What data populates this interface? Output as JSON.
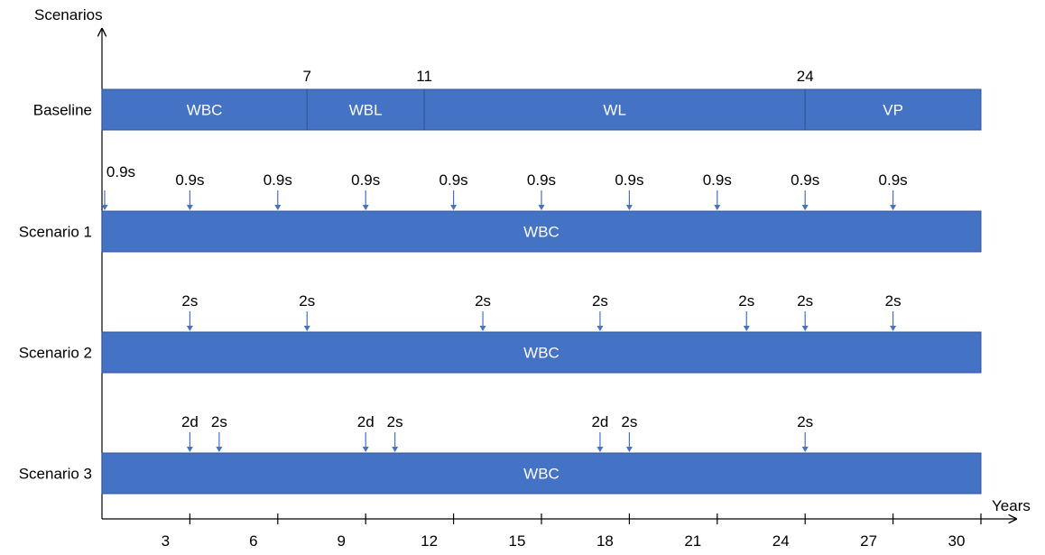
{
  "axes": {
    "y_title": "Scenarios",
    "x_title": "Years",
    "x_ticks": [
      3,
      6,
      9,
      12,
      15,
      18,
      21,
      24,
      27,
      30
    ],
    "x_range": [
      0,
      30
    ]
  },
  "colors": {
    "bar": "#4472C4",
    "bar_border": "#2F5597",
    "arrow": "#4472C4",
    "divider": "#2F5597"
  },
  "rows": [
    {
      "id": "baseline",
      "label": "Baseline",
      "segments": [
        {
          "label": "WBC",
          "start": 0,
          "end": 7
        },
        {
          "label": "WBL",
          "start": 7,
          "end": 11
        },
        {
          "label": "WL",
          "start": 11,
          "end": 24
        },
        {
          "label": "VP",
          "start": 24,
          "end": 30
        }
      ],
      "boundary_labels": [
        {
          "text": "7",
          "at": 7
        },
        {
          "text": "11",
          "at": 11
        },
        {
          "text": "24",
          "at": 24
        }
      ],
      "markers": []
    },
    {
      "id": "scenario-1",
      "label": "Scenario 1",
      "segments": [
        {
          "label": "WBC",
          "start": 0,
          "end": 30
        }
      ],
      "boundary_labels": [],
      "markers": [
        {
          "at": 0,
          "text": "0.9s"
        },
        {
          "at": 3,
          "text": "0.9s"
        },
        {
          "at": 6,
          "text": "0.9s"
        },
        {
          "at": 9,
          "text": "0.9s"
        },
        {
          "at": 12,
          "text": "0.9s"
        },
        {
          "at": 15,
          "text": "0.9s"
        },
        {
          "at": 18,
          "text": "0.9s"
        },
        {
          "at": 21,
          "text": "0.9s"
        },
        {
          "at": 24,
          "text": "0.9s"
        },
        {
          "at": 27,
          "text": "0.9s"
        }
      ]
    },
    {
      "id": "scenario-2",
      "label": "Scenario 2",
      "segments": [
        {
          "label": "WBC",
          "start": 0,
          "end": 30
        }
      ],
      "boundary_labels": [],
      "markers": [
        {
          "at": 3,
          "text": "2s"
        },
        {
          "at": 7,
          "text": "2s"
        },
        {
          "at": 13,
          "text": "2s"
        },
        {
          "at": 17,
          "text": "2s"
        },
        {
          "at": 22,
          "text": "2s"
        },
        {
          "at": 24,
          "text": "2s"
        },
        {
          "at": 27,
          "text": "2s"
        }
      ]
    },
    {
      "id": "scenario-3",
      "label": "Scenario 3",
      "segments": [
        {
          "label": "WBC",
          "start": 0,
          "end": 30
        }
      ],
      "boundary_labels": [],
      "markers": [
        {
          "at": 3,
          "text": "2d"
        },
        {
          "at": 4,
          "text": "2s"
        },
        {
          "at": 9,
          "text": "2d"
        },
        {
          "at": 10,
          "text": "2s"
        },
        {
          "at": 17,
          "text": "2d"
        },
        {
          "at": 18,
          "text": "2s"
        },
        {
          "at": 24,
          "text": "2s"
        }
      ]
    }
  ]
}
